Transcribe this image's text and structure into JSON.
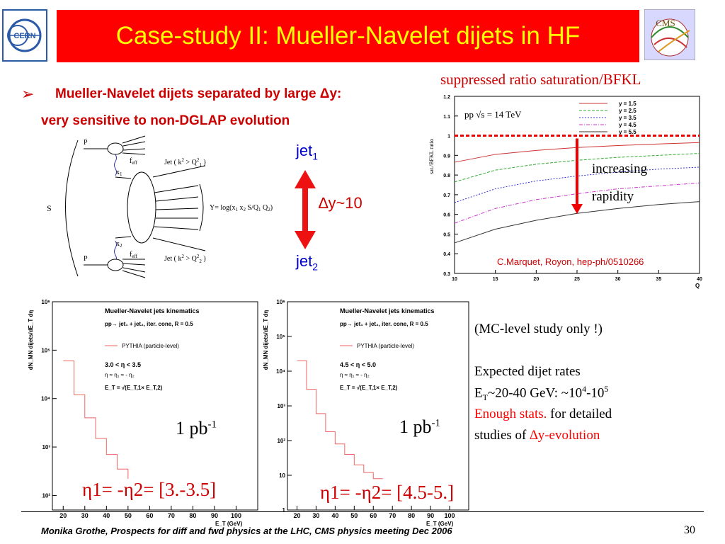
{
  "title": "Case-study II: Mueller-Navelet dijets in HF",
  "logos": {
    "left": "CERN",
    "right": "CMS"
  },
  "bullet": {
    "marker": "➢",
    "line1": "Mueller-Navelet dijets separated by large Δy:",
    "line2": "very sensitive to non-DGLAP evolution"
  },
  "diagram": {
    "P_top": "P",
    "P_bottom": "P",
    "S": "S",
    "f_top": "f",
    "f_bottom": "f",
    "f_sub": "eff",
    "x1": "x",
    "x1_sub": "1",
    "x2": "x",
    "x2_sub": "2",
    "jet_top": "Jet ( k",
    "jet_top_rest": " > Q",
    "jet_top_close": " )",
    "jet_bottom": "Jet ( k",
    "jet_bottom_rest": " > Q",
    "jet_bottom_close": " )",
    "Y_formula": "Y= log(x",
    "Y_mid": " x",
    "Y_end": " S/Q",
    "Y_tail": " Q",
    "Y_close": ")"
  },
  "arrow": {
    "jet_top": "jet",
    "jet_top_sub": "1",
    "dy": "∆y~10",
    "jet_bottom": "jet",
    "jet_bottom_sub": "2"
  },
  "right_panel": {
    "heading": "suppressed ratio saturation/BFKL",
    "pp_label": "pp   √s = 14 TeV",
    "increasing": "increasing",
    "rapidity": "rapidity",
    "ref": "C.Marquet, Royon, hep-ph/0510266",
    "ylabel": "sat./BFKL ratio",
    "xlabel": "Q"
  },
  "chart_data": [
    {
      "type": "line",
      "title": "",
      "xlabel": "Q",
      "ylabel": "sat./BFKL ratio",
      "xlim": [
        10,
        40
      ],
      "ylim": [
        0.3,
        1.2
      ],
      "xticks": [
        "10",
        "15",
        "20",
        "25",
        "30",
        "35",
        "40"
      ],
      "yticks": [
        "0.3",
        "0.4",
        "0.5",
        "0.6",
        "0.7",
        "0.8",
        "0.9",
        "1",
        "1.1",
        "1.2"
      ],
      "legend_position": "top-right",
      "x": [
        10,
        15,
        20,
        25,
        30,
        35,
        40
      ],
      "series": [
        {
          "name": "y = 1.5",
          "color": "#cc3333",
          "values": [
            0.865,
            0.905,
            0.925,
            0.94,
            0.95,
            0.958,
            0.965
          ]
        },
        {
          "name": "y = 2.5",
          "color": "#33aa33",
          "values": [
            0.765,
            0.825,
            0.855,
            0.875,
            0.89,
            0.9,
            0.91
          ]
        },
        {
          "name": "y = 3.5",
          "color": "#3333cc",
          "values": [
            0.66,
            0.73,
            0.77,
            0.795,
            0.815,
            0.83,
            0.84
          ]
        },
        {
          "name": "y = 4.5",
          "color": "#cc33cc",
          "values": [
            0.555,
            0.63,
            0.675,
            0.705,
            0.73,
            0.745,
            0.76
          ]
        },
        {
          "name": "y = 5.5",
          "color": "#333333",
          "values": [
            0.455,
            0.525,
            0.57,
            0.605,
            0.63,
            0.65,
            0.665
          ]
        }
      ],
      "reference_line": 1.0
    },
    {
      "type": "line",
      "title": "Mueller-Navelet jets kinematics",
      "xlabel": "E_T (GeV)",
      "ylabel": "dN_MN dijets/dE_T dη",
      "ylog": true,
      "ylim": [
        50,
        1000000
      ],
      "xlim": [
        15,
        110
      ],
      "xticks": [
        "20",
        "30",
        "40",
        "50",
        "60",
        "70",
        "80",
        "90",
        "100"
      ],
      "yticks": [
        "10²",
        "10³",
        "10⁴",
        "10⁵",
        "10⁶"
      ],
      "series": [
        {
          "name": "PYTHIA (particle-level)",
          "x": [
            20,
            25,
            30,
            35,
            40,
            45,
            50,
            55,
            60
          ],
          "values": [
            60000,
            12000,
            4000,
            1500,
            700,
            350,
            200,
            120,
            80
          ]
        }
      ],
      "annotations": [
        "pp→ jet₁ + jet₂, iter. cone, R = 0.5",
        "3.0 < η < 3.5",
        "η ≈ η₁ ≈ - η₂",
        "E_T = √(E_T,1× E_T,2)"
      ]
    },
    {
      "type": "line",
      "title": "Mueller-Navelet jets kinematics",
      "xlabel": "E_T (GeV)",
      "ylabel": "dN_MN dijets/dE_T dη",
      "ylog": true,
      "ylim": [
        1,
        1000000
      ],
      "xlim": [
        15,
        110
      ],
      "xticks": [
        "20",
        "30",
        "40",
        "50",
        "60",
        "70",
        "80",
        "90",
        "100"
      ],
      "yticks": [
        "1",
        "10",
        "10²",
        "10³",
        "10⁴",
        "10⁵",
        "10⁶"
      ],
      "series": [
        {
          "name": "PYTHIA (particle-level)",
          "x": [
            20,
            25,
            30,
            35,
            40,
            45,
            50,
            55,
            60
          ],
          "values": [
            20000,
            3000,
            600,
            180,
            80,
            40,
            20,
            12,
            8
          ]
        }
      ],
      "annotations": [
        "pp→ jet₁ + jet₂, iter. cone, R = 0.5",
        "4.5 < η < 5.0",
        "η ≈ η₁ ≈ - η₂",
        "E_T = √(E_T,1× E_T,2)"
      ]
    }
  ],
  "plots": {
    "left_pb": "1 pb",
    "left_pb_sup": "-1",
    "right_pb": "1 pb",
    "right_pb_sup": "-1",
    "left_eta": "η1= -η2= [3.-3.5]",
    "right_eta": "η1= -η2= [4.5-5.]"
  },
  "notes": {
    "mc": "(MC-level study only !)",
    "rates": "Expected dijet rates",
    "et_line_a": "E",
    "et_line_sub": "T",
    "et_line_b": "~20-40 GeV: ~10",
    "et_sup1": "4",
    "et_line_c": "-10",
    "et_sup2": "5",
    "enough": "Enough stats.",
    "for_detailed": " for detailed",
    "studies": "studies of ",
    "dy_evol": "∆y-evolution"
  },
  "footer": {
    "text": "Monika Grothe, Prospects for diff and fwd physics at the LHC, CMS physics meeting Dec 2006",
    "page": "30"
  }
}
